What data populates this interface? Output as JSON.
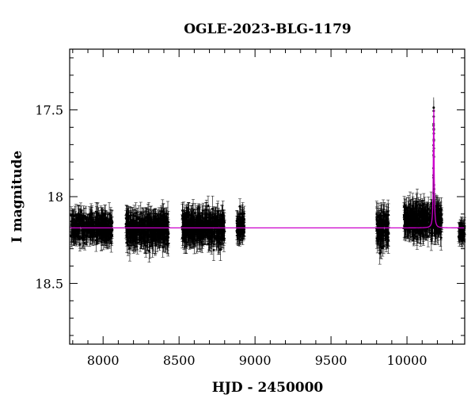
{
  "chart_data": {
    "type": "scatter",
    "title": "OGLE-2023-BLG-1179",
    "xlabel": "HJD - 2450000",
    "ylabel": "I magnitude",
    "xlim": [
      7780,
      10380
    ],
    "ylim": [
      18.85,
      17.15
    ],
    "y_inverted": true,
    "xticks": [
      8000,
      8500,
      9000,
      9500,
      10000
    ],
    "xtick_labels": [
      "8000",
      "8500",
      "9000",
      "9500",
      "10000"
    ],
    "yticks": [
      17.5,
      18,
      18.5
    ],
    "ytick_labels": [
      "17.5",
      "18",
      "18.5"
    ],
    "grid": false,
    "legend": "none",
    "series": [
      {
        "kind": "points_with_errorbars",
        "color": "#000000",
        "baseline_mag": 18.18,
        "seasons": [
          {
            "x_range": [
              7790,
              8060
            ],
            "mag_center": 18.18,
            "mag_spread": 0.06,
            "err": 0.05
          },
          {
            "x_range": [
              8150,
              8430
            ],
            "mag_center": 18.19,
            "mag_spread": 0.07,
            "err": 0.06
          },
          {
            "x_range": [
              8520,
              8800
            ],
            "mag_center": 18.18,
            "mag_spread": 0.07,
            "err": 0.06
          },
          {
            "x_range": [
              8880,
              8930
            ],
            "mag_center": 18.17,
            "mag_spread": 0.06,
            "err": 0.05
          },
          {
            "x_range": [
              9800,
              9880
            ],
            "mag_center": 18.19,
            "mag_spread": 0.08,
            "err": 0.06
          },
          {
            "x_range": [
              9980,
              10230
            ],
            "mag_center": 18.14,
            "mag_spread": 0.07,
            "err": 0.06
          },
          {
            "x_range": [
              10340,
              10380
            ],
            "mag_center": 18.2,
            "mag_spread": 0.04,
            "err": 0.04
          }
        ],
        "peak": {
          "t0": 10176,
          "peak_mag": 17.5
        }
      },
      {
        "kind": "model_curve",
        "color": "#cc00cc",
        "baseline_mag": 18.18,
        "t0": 10176,
        "peak_mag": 17.45,
        "tE": 3
      }
    ]
  }
}
